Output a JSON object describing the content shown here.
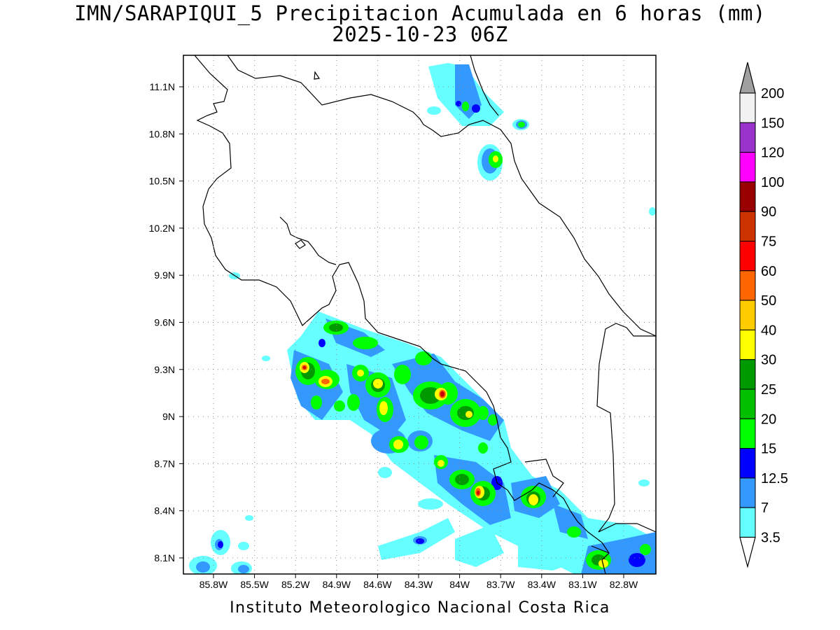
{
  "header": {
    "title_line1": "IMN/SARAPIQUI_5 Precipitacion Acumulada en 6 horas (mm)",
    "title_line2": "2025-10-23 06Z"
  },
  "footer": {
    "credit": "Instituto Meteorologico Nacional Costa Rica"
  },
  "axes": {
    "lon_labels": [
      "85.8W",
      "85.5W",
      "85.2W",
      "84.9W",
      "84.6W",
      "84.3W",
      "84W",
      "83.7W",
      "83.4W",
      "83.1W",
      "82.8W"
    ],
    "lat_labels": [
      "11.1N",
      "10.8N",
      "10.5N",
      "10.2N",
      "9.9N",
      "9.6N",
      "9.3N",
      "9N",
      "8.7N",
      "8.4N",
      "8.1N"
    ]
  },
  "colorbar": {
    "labels": [
      "200",
      "150",
      "120",
      "100",
      "90",
      "75",
      "60",
      "50",
      "40",
      "30",
      "25",
      "20",
      "15",
      "12.5",
      "7",
      "3.5"
    ],
    "colors": [
      "#f2f2f2",
      "#9933cc",
      "#ff00ff",
      "#990000",
      "#cc3300",
      "#ff0000",
      "#ff6600",
      "#ffcc00",
      "#ffff00",
      "#009900",
      "#00c000",
      "#00ff00",
      "#0000ff",
      "#3399ff",
      "#66ffff"
    ],
    "over_color": "#a0a0a0"
  }
}
